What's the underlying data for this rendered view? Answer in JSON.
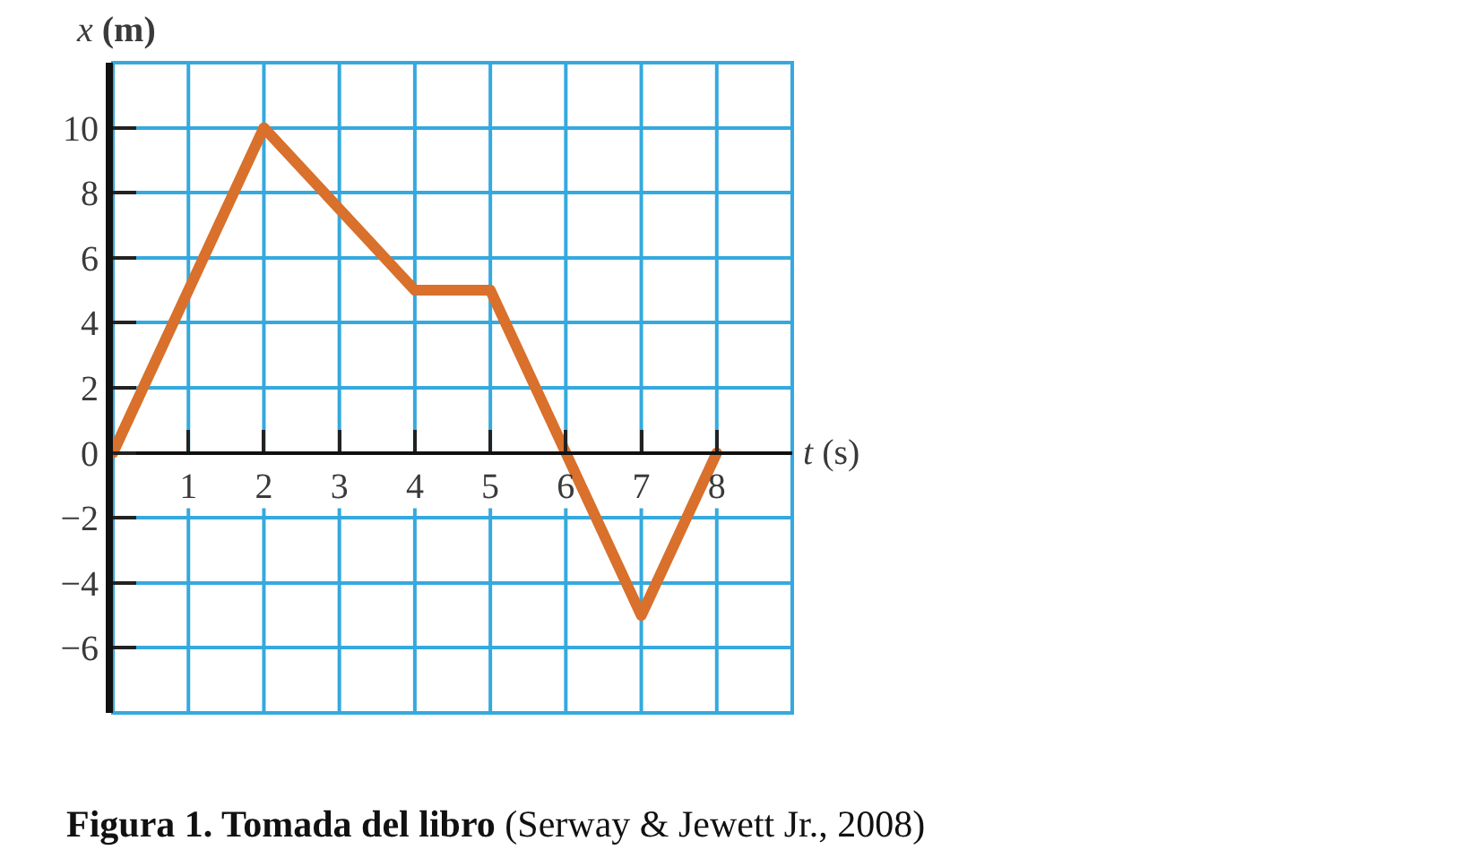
{
  "chart_data": {
    "type": "line",
    "xlabel": "t (s)",
    "ylabel": "x (m)",
    "annotations": [
      "Figura 1. Tomada del libro (Serway & Jewett Jr., 2008)"
    ],
    "x": [
      0,
      2,
      4,
      5,
      7,
      8
    ],
    "series": [
      {
        "color": "#d9702b",
        "values": [
          0,
          10,
          5,
          5,
          -5,
          0
        ]
      }
    ],
    "xlim": [
      0,
      9
    ],
    "xticks": [
      1,
      2,
      3,
      4,
      5,
      6,
      7,
      8
    ],
    "ylim": [
      -8,
      12
    ],
    "yticks": [
      -6,
      -4,
      -2,
      0,
      2,
      4,
      6,
      8,
      10
    ],
    "grid": true,
    "marker": "none",
    "line_style": "solid"
  }
}
